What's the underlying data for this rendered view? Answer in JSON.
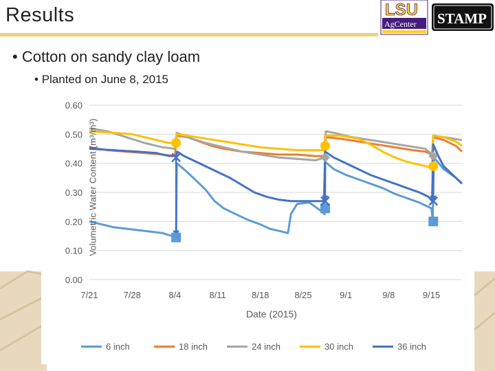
{
  "slide": {
    "title": "Results",
    "bullet1": "Cotton on sandy clay loam",
    "bullet2": "Planted on June 8, 2015",
    "bullet_marker": "•"
  },
  "logos": {
    "lsu_text": "LSU",
    "agcenter_text": "AgCenter",
    "stamp_text": "STAMP"
  },
  "colors": {
    "6 inch": "#5b9bd5",
    "18 inch": "#ed7d31",
    "24 inch": "#a5a5a5",
    "30 inch": "#ffc000",
    "36 inch": "#4472c4"
  },
  "chart_data": {
    "type": "line",
    "xlabel": "Date (2015)",
    "ylabel": "Volumetric Water Content (m³/m³)",
    "x_ticks": [
      "7/21",
      "7/28",
      "8/4",
      "8/11",
      "8/18",
      "8/25",
      "9/1",
      "9/8",
      "9/15"
    ],
    "x_range_days": [
      0,
      61
    ],
    "x_units": "days after 7/21",
    "ylim": [
      0,
      0.6
    ],
    "y_ticks": [
      "0.00",
      "0.10",
      "0.20",
      "0.30",
      "0.40",
      "0.50",
      "0.60"
    ],
    "grid": true,
    "legend_position": "bottom",
    "series": [
      {
        "name": "6 inch",
        "color": "#5b9bd5",
        "points": [
          [
            0,
            0.2
          ],
          [
            2,
            0.19
          ],
          [
            4,
            0.18
          ],
          [
            6,
            0.175
          ],
          [
            8,
            0.17
          ],
          [
            10,
            0.165
          ],
          [
            12,
            0.16
          ],
          [
            13.5,
            0.15
          ],
          [
            14.2,
            0.15
          ],
          [
            14.3,
            0.4
          ],
          [
            16,
            0.37
          ],
          [
            17.5,
            0.34
          ],
          [
            19,
            0.31
          ],
          [
            20.5,
            0.27
          ],
          [
            22,
            0.245
          ],
          [
            24,
            0.225
          ],
          [
            26,
            0.205
          ],
          [
            28,
            0.19
          ],
          [
            29.5,
            0.175
          ],
          [
            31.5,
            0.165
          ],
          [
            32.5,
            0.16
          ],
          [
            33,
            0.225
          ],
          [
            34,
            0.26
          ],
          [
            36,
            0.265
          ],
          [
            37,
            0.25
          ],
          [
            38,
            0.235
          ],
          [
            38.5,
            0.225
          ],
          [
            38.6,
            0.405
          ],
          [
            40,
            0.38
          ],
          [
            42,
            0.36
          ],
          [
            44,
            0.345
          ],
          [
            46,
            0.33
          ],
          [
            48,
            0.315
          ],
          [
            50,
            0.295
          ],
          [
            52,
            0.28
          ],
          [
            54,
            0.265
          ],
          [
            55,
            0.255
          ],
          [
            56,
            0.245
          ],
          [
            56.2,
            0.205
          ],
          [
            56.4,
            0.42
          ],
          [
            58,
            0.38
          ],
          [
            60,
            0.35
          ],
          [
            61,
            0.33
          ]
        ]
      },
      {
        "name": "18 inch",
        "color": "#ed7d31",
        "points": [
          [
            0,
            0.455
          ],
          [
            3,
            0.445
          ],
          [
            6,
            0.44
          ],
          [
            9,
            0.435
          ],
          [
            12,
            0.43
          ],
          [
            14,
            0.425
          ],
          [
            14.3,
            0.495
          ],
          [
            16,
            0.49
          ],
          [
            18,
            0.475
          ],
          [
            20,
            0.46
          ],
          [
            22,
            0.45
          ],
          [
            25,
            0.44
          ],
          [
            28,
            0.435
          ],
          [
            31,
            0.43
          ],
          [
            34,
            0.43
          ],
          [
            37,
            0.425
          ],
          [
            38.5,
            0.425
          ],
          [
            38.7,
            0.49
          ],
          [
            41,
            0.485
          ],
          [
            44,
            0.475
          ],
          [
            47,
            0.465
          ],
          [
            50,
            0.455
          ],
          [
            53,
            0.445
          ],
          [
            55,
            0.44
          ],
          [
            56.1,
            0.43
          ],
          [
            56.3,
            0.49
          ],
          [
            58,
            0.48
          ],
          [
            60,
            0.46
          ],
          [
            61,
            0.44
          ]
        ]
      },
      {
        "name": "24 inch",
        "color": "#a5a5a5",
        "points": [
          [
            0,
            0.52
          ],
          [
            3,
            0.51
          ],
          [
            6,
            0.49
          ],
          [
            9,
            0.47
          ],
          [
            12,
            0.455
          ],
          [
            14,
            0.45
          ],
          [
            14.3,
            0.505
          ],
          [
            16,
            0.49
          ],
          [
            19,
            0.47
          ],
          [
            22,
            0.455
          ],
          [
            25,
            0.44
          ],
          [
            28,
            0.43
          ],
          [
            31,
            0.42
          ],
          [
            34,
            0.415
          ],
          [
            37,
            0.41
          ],
          [
            38.5,
            0.42
          ],
          [
            38.7,
            0.51
          ],
          [
            40,
            0.505
          ],
          [
            43,
            0.49
          ],
          [
            46,
            0.48
          ],
          [
            49,
            0.47
          ],
          [
            52,
            0.46
          ],
          [
            55,
            0.45
          ],
          [
            56.1,
            0.43
          ],
          [
            56.3,
            0.495
          ],
          [
            58,
            0.49
          ],
          [
            61,
            0.48
          ]
        ]
      },
      {
        "name": "30 inch",
        "color": "#ffc000",
        "points": [
          [
            0,
            0.51
          ],
          [
            4,
            0.505
          ],
          [
            7,
            0.5
          ],
          [
            9,
            0.49
          ],
          [
            11,
            0.48
          ],
          [
            13,
            0.47
          ],
          [
            14.2,
            0.47
          ],
          [
            14.3,
            0.5
          ],
          [
            16,
            0.495
          ],
          [
            19,
            0.485
          ],
          [
            22,
            0.475
          ],
          [
            25,
            0.465
          ],
          [
            28,
            0.455
          ],
          [
            31,
            0.45
          ],
          [
            34,
            0.445
          ],
          [
            36,
            0.445
          ],
          [
            38.4,
            0.445
          ],
          [
            38.6,
            0.495
          ],
          [
            41,
            0.495
          ],
          [
            44,
            0.485
          ],
          [
            46,
            0.465
          ],
          [
            48,
            0.44
          ],
          [
            50,
            0.42
          ],
          [
            52,
            0.405
          ],
          [
            54,
            0.395
          ],
          [
            56.1,
            0.385
          ],
          [
            56.3,
            0.495
          ],
          [
            58,
            0.49
          ],
          [
            60,
            0.475
          ],
          [
            61,
            0.46
          ]
        ]
      },
      {
        "name": "36 inch",
        "color": "#4472c4",
        "points": [
          [
            0,
            0.45
          ],
          [
            4,
            0.445
          ],
          [
            8,
            0.44
          ],
          [
            11,
            0.435
          ],
          [
            13,
            0.425
          ],
          [
            14.2,
            0.425
          ],
          [
            14.4,
            0.44
          ],
          [
            15.5,
            0.425
          ],
          [
            17,
            0.41
          ],
          [
            19,
            0.39
          ],
          [
            21,
            0.37
          ],
          [
            23,
            0.35
          ],
          [
            25,
            0.325
          ],
          [
            27,
            0.3
          ],
          [
            29,
            0.285
          ],
          [
            31,
            0.275
          ],
          [
            33,
            0.27
          ],
          [
            35,
            0.27
          ],
          [
            37,
            0.27
          ],
          [
            38.4,
            0.27
          ],
          [
            38.6,
            0.44
          ],
          [
            40,
            0.42
          ],
          [
            42,
            0.4
          ],
          [
            44,
            0.38
          ],
          [
            46,
            0.36
          ],
          [
            48,
            0.345
          ],
          [
            50,
            0.33
          ],
          [
            52,
            0.315
          ],
          [
            54,
            0.3
          ],
          [
            55.5,
            0.285
          ],
          [
            56.1,
            0.27
          ],
          [
            56.3,
            0.465
          ],
          [
            57,
            0.43
          ],
          [
            58,
            0.39
          ],
          [
            59.5,
            0.36
          ],
          [
            61,
            0.33
          ]
        ]
      }
    ],
    "markers": {
      "6_inch_squares": [
        [
          14.2,
          0.145
        ],
        [
          38.6,
          0.245
        ],
        [
          56.3,
          0.2
        ]
      ],
      "30_inch_circles": [
        [
          14.2,
          0.47
        ],
        [
          38.6,
          0.46
        ],
        [
          56.3,
          0.39
        ]
      ],
      "24_inch_diamonds": [
        [
          38.6,
          0.42
        ],
        [
          56.3,
          0.425
        ]
      ],
      "36_inch_crosses": [
        [
          14.2,
          0.42
        ],
        [
          38.6,
          0.27
        ],
        [
          56.3,
          0.27
        ]
      ]
    },
    "irrigation_arrows": [
      {
        "x": 14.2,
        "from": 0.425,
        "to": 0.15
      },
      {
        "x": 38.6,
        "from": 0.46,
        "to": 0.27
      },
      {
        "x": 56.3,
        "from": 0.39,
        "to": 0.27
      }
    ]
  }
}
